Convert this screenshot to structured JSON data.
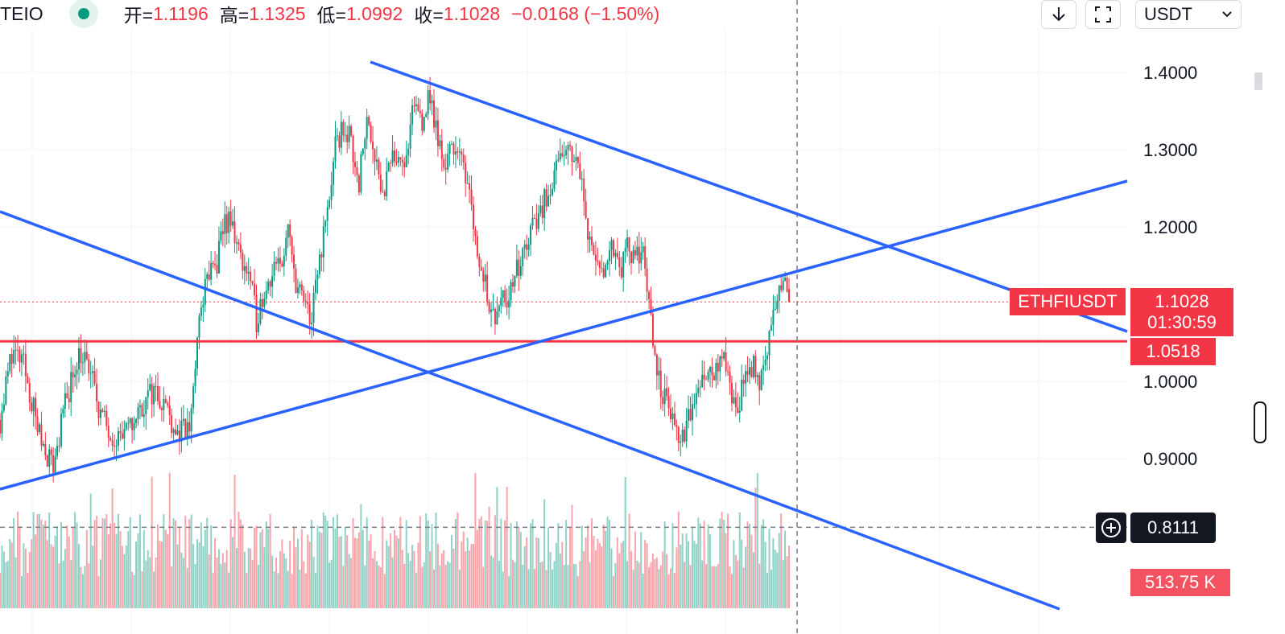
{
  "header": {
    "symbol": "TEIO",
    "open_label": "开=",
    "open_value": "1.1196",
    "high_label": "高=",
    "high_value": "1.1325",
    "low_label": "低=",
    "low_value": "1.0992",
    "close_label": "收=",
    "close_value": "1.1028",
    "change": "−0.0168 (−1.50%)"
  },
  "toolbar": {
    "download_icon": "arrow-down-icon",
    "fullscreen_icon": "fullscreen-icon",
    "currency": "USDT",
    "chevron_icon": "chevron-down-icon"
  },
  "price_tags": {
    "symbol_label": "ETHFIUSDT",
    "last_price": "1.1028",
    "countdown": "01:30:59",
    "level_price": "1.0518",
    "crosshair_price": "0.8111",
    "volume": "513.75 K",
    "plus_icon": "plus-circle-icon"
  },
  "colors": {
    "up": "#089981",
    "down": "#f23645",
    "trendline": "#2962ff",
    "level_line": "#f23645"
  },
  "chart_data": {
    "type": "candlestick",
    "y_axis_ticks": [
      "1.4000",
      "1.3000",
      "1.2000",
      "1.0000",
      "0.9000"
    ],
    "ylim": [
      0.78,
      1.47
    ],
    "last_price": 1.1028,
    "horizontal_level": 1.0518,
    "crosshair_price": 0.8111,
    "grid": true,
    "path": [
      [
        0,
        0.95
      ],
      [
        6,
        1.04
      ],
      [
        12,
        1.02
      ],
      [
        20,
        0.93
      ],
      [
        27,
        0.89
      ],
      [
        33,
        0.97
      ],
      [
        40,
        1.04
      ],
      [
        46,
        1.01
      ],
      [
        52,
        0.95
      ],
      [
        58,
        0.93
      ],
      [
        64,
        0.93
      ],
      [
        70,
        0.96
      ],
      [
        78,
        0.99
      ],
      [
        84,
        0.97
      ],
      [
        90,
        0.93
      ],
      [
        96,
        0.94
      ],
      [
        99,
        1.02
      ],
      [
        102,
        1.1
      ],
      [
        106,
        1.14
      ],
      [
        110,
        1.15
      ],
      [
        114,
        1.21
      ],
      [
        118,
        1.2
      ],
      [
        122,
        1.16
      ],
      [
        126,
        1.14
      ],
      [
        130,
        1.08
      ],
      [
        134,
        1.12
      ],
      [
        138,
        1.14
      ],
      [
        142,
        1.15
      ],
      [
        146,
        1.19
      ],
      [
        150,
        1.13
      ],
      [
        154,
        1.1
      ],
      [
        158,
        1.08
      ],
      [
        162,
        1.16
      ],
      [
        166,
        1.22
      ],
      [
        170,
        1.3
      ],
      [
        174,
        1.33
      ],
      [
        178,
        1.31
      ],
      [
        182,
        1.26
      ],
      [
        186,
        1.34
      ],
      [
        190,
        1.3
      ],
      [
        194,
        1.24
      ],
      [
        198,
        1.28
      ],
      [
        202,
        1.3
      ],
      [
        206,
        1.28
      ],
      [
        210,
        1.36
      ],
      [
        214,
        1.34
      ],
      [
        218,
        1.37
      ],
      [
        222,
        1.31
      ],
      [
        226,
        1.28
      ],
      [
        230,
        1.31
      ],
      [
        234,
        1.28
      ],
      [
        238,
        1.26
      ],
      [
        242,
        1.16
      ],
      [
        246,
        1.13
      ],
      [
        250,
        1.08
      ],
      [
        254,
        1.12
      ],
      [
        258,
        1.11
      ],
      [
        262,
        1.14
      ],
      [
        266,
        1.17
      ],
      [
        270,
        1.2
      ],
      [
        274,
        1.22
      ],
      [
        278,
        1.25
      ],
      [
        282,
        1.27
      ],
      [
        286,
        1.29
      ],
      [
        290,
        1.3
      ],
      [
        294,
        1.27
      ],
      [
        298,
        1.2
      ],
      [
        302,
        1.15
      ],
      [
        306,
        1.13
      ],
      [
        310,
        1.19
      ],
      [
        314,
        1.14
      ],
      [
        318,
        1.17
      ],
      [
        322,
        1.15
      ],
      [
        326,
        1.18
      ],
      [
        330,
        1.07
      ],
      [
        334,
        1.0
      ],
      [
        338,
        0.97
      ],
      [
        342,
        0.94
      ],
      [
        346,
        0.92
      ],
      [
        350,
        0.96
      ],
      [
        354,
        0.99
      ],
      [
        358,
        1.02
      ],
      [
        362,
        1.01
      ],
      [
        366,
        1.03
      ],
      [
        370,
        0.99
      ],
      [
        374,
        0.97
      ],
      [
        378,
        1.0
      ],
      [
        382,
        1.02
      ],
      [
        386,
        1.0
      ],
      [
        390,
        1.06
      ],
      [
        394,
        1.1
      ],
      [
        398,
        1.14
      ],
      [
        400,
        1.1
      ]
    ],
    "x_seed": 11,
    "x_count": 401,
    "volume_last": "513.75 K"
  }
}
